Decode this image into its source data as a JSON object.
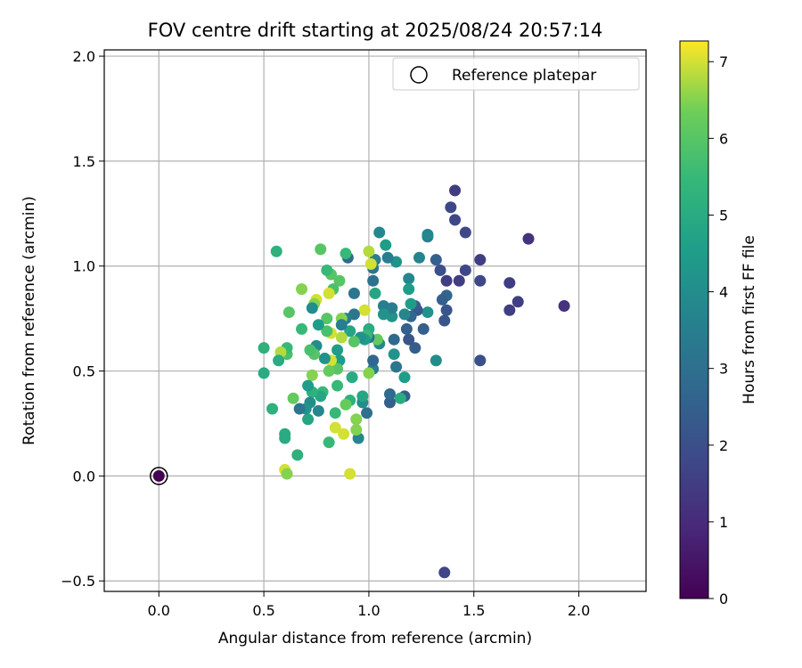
{
  "chart_data": {
    "type": "scatter",
    "title": "FOV centre drift starting at 2025/08/24 20:57:14",
    "xlabel": "Angular distance from reference (arcmin)",
    "ylabel": "Rotation from reference (arcmin)",
    "xlim": [
      -0.26,
      2.32
    ],
    "ylim": [
      -0.55,
      2.03
    ],
    "xticks": [
      0.0,
      0.5,
      1.0,
      1.5,
      2.0
    ],
    "xtick_labels": [
      "0.0",
      "0.5",
      "1.0",
      "1.5",
      "2.0"
    ],
    "yticks": [
      -0.5,
      0.0,
      0.5,
      1.0,
      1.5,
      2.0
    ],
    "ytick_labels": [
      "−0.5",
      "0.0",
      "0.5",
      "1.0",
      "1.5",
      "2.0"
    ],
    "grid": true,
    "legend": {
      "position": "top-right",
      "entries": [
        "Reference platepar"
      ]
    },
    "colorbar": {
      "label": "Hours from first FF file",
      "colormap": "viridis",
      "range": [
        0,
        7.27
      ],
      "ticks": [
        0,
        1,
        2,
        3,
        4,
        5,
        6,
        7
      ],
      "tick_labels": [
        "0",
        "1",
        "2",
        "3",
        "4",
        "5",
        "6",
        "7"
      ]
    },
    "reference_point": {
      "x": 0.0,
      "y": 0.0,
      "hours": 0.0
    },
    "points": [
      {
        "x": 1.41,
        "y": 1.36,
        "h": 1.5
      },
      {
        "x": 1.39,
        "y": 1.28,
        "h": 1.8
      },
      {
        "x": 1.41,
        "y": 1.22,
        "h": 1.8
      },
      {
        "x": 1.46,
        "y": 1.16,
        "h": 1.8
      },
      {
        "x": 1.76,
        "y": 1.13,
        "h": 1.2
      },
      {
        "x": 1.53,
        "y": 1.03,
        "h": 1.5
      },
      {
        "x": 1.46,
        "y": 0.98,
        "h": 1.8
      },
      {
        "x": 1.37,
        "y": 0.93,
        "h": 1.5
      },
      {
        "x": 1.43,
        "y": 0.93,
        "h": 1.5
      },
      {
        "x": 1.53,
        "y": 0.93,
        "h": 1.8
      },
      {
        "x": 1.67,
        "y": 0.92,
        "h": 1.5
      },
      {
        "x": 1.34,
        "y": 0.98,
        "h": 2.0
      },
      {
        "x": 1.71,
        "y": 0.83,
        "h": 1.5
      },
      {
        "x": 1.67,
        "y": 0.79,
        "h": 1.5
      },
      {
        "x": 1.93,
        "y": 0.81,
        "h": 1.2
      },
      {
        "x": 1.36,
        "y": 0.74,
        "h": 2.2
      },
      {
        "x": 1.37,
        "y": 0.79,
        "h": 2.2
      },
      {
        "x": 1.37,
        "y": 0.86,
        "h": 2.7
      },
      {
        "x": 1.35,
        "y": 0.84,
        "h": 2.5
      },
      {
        "x": 1.32,
        "y": 1.03,
        "h": 2.5
      },
      {
        "x": 1.28,
        "y": 1.14,
        "h": 3.5
      },
      {
        "x": 1.28,
        "y": 1.15,
        "h": 3.8
      },
      {
        "x": 1.24,
        "y": 1.04,
        "h": 3.7
      },
      {
        "x": 1.53,
        "y": 0.55,
        "h": 2.0
      },
      {
        "x": 1.36,
        "y": -0.46,
        "h": 1.7
      },
      {
        "x": 1.32,
        "y": 0.55,
        "h": 4.0
      },
      {
        "x": 1.28,
        "y": 0.78,
        "h": 4.2
      },
      {
        "x": 1.26,
        "y": 0.7,
        "h": 2.5
      },
      {
        "x": 1.23,
        "y": 0.79,
        "h": 2.2
      },
      {
        "x": 1.22,
        "y": 0.81,
        "h": 2.4
      },
      {
        "x": 1.2,
        "y": 0.76,
        "h": 2.7
      },
      {
        "x": 1.22,
        "y": 0.61,
        "h": 2.4
      },
      {
        "x": 1.2,
        "y": 0.82,
        "h": 4.5
      },
      {
        "x": 1.19,
        "y": 0.94,
        "h": 3.8
      },
      {
        "x": 1.19,
        "y": 0.89,
        "h": 4.5
      },
      {
        "x": 1.18,
        "y": 0.7,
        "h": 2.5
      },
      {
        "x": 1.19,
        "y": 0.65,
        "h": 2.2
      },
      {
        "x": 1.17,
        "y": 0.77,
        "h": 3.8
      },
      {
        "x": 1.17,
        "y": 0.47,
        "h": 4.5
      },
      {
        "x": 1.17,
        "y": 0.38,
        "h": 2.5
      },
      {
        "x": 1.15,
        "y": 0.37,
        "h": 5.0
      },
      {
        "x": 1.13,
        "y": 1.02,
        "h": 4.2
      },
      {
        "x": 1.13,
        "y": 0.52,
        "h": 3.2
      },
      {
        "x": 1.12,
        "y": 0.58,
        "h": 4.2
      },
      {
        "x": 1.12,
        "y": 0.65,
        "h": 2.8
      },
      {
        "x": 1.11,
        "y": 0.76,
        "h": 4.2
      },
      {
        "x": 1.11,
        "y": 0.8,
        "h": 3.5
      },
      {
        "x": 1.1,
        "y": 0.35,
        "h": 2.5
      },
      {
        "x": 1.1,
        "y": 0.39,
        "h": 2.8
      },
      {
        "x": 1.09,
        "y": 1.04,
        "h": 3.5
      },
      {
        "x": 1.08,
        "y": 1.1,
        "h": 4.5
      },
      {
        "x": 1.07,
        "y": 0.81,
        "h": 3.5
      },
      {
        "x": 1.07,
        "y": 0.77,
        "h": 4.2
      },
      {
        "x": 1.05,
        "y": 1.16,
        "h": 3.8
      },
      {
        "x": 1.05,
        "y": 0.63,
        "h": 3.8
      },
      {
        "x": 1.04,
        "y": 0.65,
        "h": 6.2
      },
      {
        "x": 1.03,
        "y": 1.03,
        "h": 3.5
      },
      {
        "x": 1.03,
        "y": 0.87,
        "h": 4.8
      },
      {
        "x": 1.02,
        "y": 0.93,
        "h": 3.0
      },
      {
        "x": 1.02,
        "y": 0.99,
        "h": 3.2
      },
      {
        "x": 1.02,
        "y": 0.51,
        "h": 3.5
      },
      {
        "x": 1.02,
        "y": 0.55,
        "h": 2.7
      },
      {
        "x": 1.01,
        "y": 1.01,
        "h": 7.0
      },
      {
        "x": 1.0,
        "y": 1.07,
        "h": 6.8
      },
      {
        "x": 1.0,
        "y": 0.7,
        "h": 5.0
      },
      {
        "x": 1.0,
        "y": 0.49,
        "h": 6.5
      },
      {
        "x": 1.0,
        "y": 0.66,
        "h": 3.0
      },
      {
        "x": 0.99,
        "y": 0.67,
        "h": 5.5
      },
      {
        "x": 0.99,
        "y": 0.3,
        "h": 3.0
      },
      {
        "x": 0.98,
        "y": 0.79,
        "h": 7.0
      },
      {
        "x": 0.98,
        "y": 0.65,
        "h": 4.5
      },
      {
        "x": 0.97,
        "y": 0.35,
        "h": 4.0
      },
      {
        "x": 0.97,
        "y": 0.38,
        "h": 4.8
      },
      {
        "x": 0.96,
        "y": 0.66,
        "h": 4.2
      },
      {
        "x": 0.95,
        "y": 0.18,
        "h": 3.8
      },
      {
        "x": 0.94,
        "y": 0.22,
        "h": 6.5
      },
      {
        "x": 0.94,
        "y": 0.27,
        "h": 6.5
      },
      {
        "x": 0.93,
        "y": 0.77,
        "h": 3.2
      },
      {
        "x": 0.93,
        "y": 0.87,
        "h": 3.2
      },
      {
        "x": 0.93,
        "y": 0.64,
        "h": 6.0
      },
      {
        "x": 0.92,
        "y": 0.47,
        "h": 5.0
      },
      {
        "x": 0.91,
        "y": 0.36,
        "h": 5.2
      },
      {
        "x": 0.91,
        "y": 0.69,
        "h": 4.8
      },
      {
        "x": 0.91,
        "y": 0.01,
        "h": 7.0
      },
      {
        "x": 0.9,
        "y": 1.04,
        "h": 2.8
      },
      {
        "x": 0.89,
        "y": 1.06,
        "h": 5.5
      },
      {
        "x": 0.89,
        "y": 0.34,
        "h": 6.2
      },
      {
        "x": 0.89,
        "y": 0.75,
        "h": 3.5
      },
      {
        "x": 0.88,
        "y": 0.2,
        "h": 7.0
      },
      {
        "x": 0.87,
        "y": 0.75,
        "h": 6.5
      },
      {
        "x": 0.87,
        "y": 0.72,
        "h": 3.5
      },
      {
        "x": 0.87,
        "y": 0.66,
        "h": 6.8
      },
      {
        "x": 0.86,
        "y": 0.93,
        "h": 6.0
      },
      {
        "x": 0.86,
        "y": 0.55,
        "h": 4.5
      },
      {
        "x": 0.85,
        "y": 0.6,
        "h": 4.5
      },
      {
        "x": 0.85,
        "y": 0.51,
        "h": 6.0
      },
      {
        "x": 0.85,
        "y": 0.43,
        "h": 5.5
      },
      {
        "x": 0.84,
        "y": 0.3,
        "h": 5.5
      },
      {
        "x": 0.84,
        "y": 0.23,
        "h": 7.0
      },
      {
        "x": 0.83,
        "y": 0.89,
        "h": 5.8
      },
      {
        "x": 0.82,
        "y": 0.68,
        "h": 7.0
      },
      {
        "x": 0.82,
        "y": 0.55,
        "h": 7.0
      },
      {
        "x": 0.82,
        "y": 0.96,
        "h": 6.0
      },
      {
        "x": 0.81,
        "y": 0.87,
        "h": 7.0
      },
      {
        "x": 0.81,
        "y": 0.5,
        "h": 6.2
      },
      {
        "x": 0.81,
        "y": 0.16,
        "h": 5.5
      },
      {
        "x": 0.8,
        "y": 0.98,
        "h": 5.5
      },
      {
        "x": 0.8,
        "y": 0.75,
        "h": 6.0
      },
      {
        "x": 0.8,
        "y": 0.69,
        "h": 5.8
      },
      {
        "x": 0.79,
        "y": 0.56,
        "h": 4.2
      },
      {
        "x": 0.78,
        "y": 0.4,
        "h": 5.5
      },
      {
        "x": 0.77,
        "y": 1.08,
        "h": 6.0
      },
      {
        "x": 0.77,
        "y": 0.38,
        "h": 4.8
      },
      {
        "x": 0.76,
        "y": 0.31,
        "h": 3.8
      },
      {
        "x": 0.76,
        "y": 0.72,
        "h": 4.5
      },
      {
        "x": 0.75,
        "y": 0.84,
        "h": 7.0
      },
      {
        "x": 0.75,
        "y": 0.62,
        "h": 4.0
      },
      {
        "x": 0.74,
        "y": 0.82,
        "h": 6.5
      },
      {
        "x": 0.74,
        "y": 0.58,
        "h": 6.0
      },
      {
        "x": 0.73,
        "y": 0.8,
        "h": 4.0
      },
      {
        "x": 0.73,
        "y": 0.48,
        "h": 6.5
      },
      {
        "x": 0.73,
        "y": 0.4,
        "h": 5.2
      },
      {
        "x": 0.72,
        "y": 0.6,
        "h": 5.8
      },
      {
        "x": 0.72,
        "y": 0.35,
        "h": 4.0
      },
      {
        "x": 0.71,
        "y": 0.43,
        "h": 4.5
      },
      {
        "x": 0.71,
        "y": 0.27,
        "h": 4.8
      },
      {
        "x": 0.7,
        "y": 0.32,
        "h": 4.2
      },
      {
        "x": 0.68,
        "y": 0.89,
        "h": 6.5
      },
      {
        "x": 0.68,
        "y": 0.7,
        "h": 5.5
      },
      {
        "x": 0.67,
        "y": 0.32,
        "h": 3.2
      },
      {
        "x": 0.66,
        "y": 0.1,
        "h": 5.2
      },
      {
        "x": 0.64,
        "y": 0.37,
        "h": 6.2
      },
      {
        "x": 0.62,
        "y": 0.78,
        "h": 6.0
      },
      {
        "x": 0.61,
        "y": 0.58,
        "h": 5.8
      },
      {
        "x": 0.61,
        "y": 0.61,
        "h": 5.5
      },
      {
        "x": 0.6,
        "y": 0.2,
        "h": 5.0
      },
      {
        "x": 0.6,
        "y": 0.18,
        "h": 5.0
      },
      {
        "x": 0.6,
        "y": 0.03,
        "h": 7.0
      },
      {
        "x": 0.61,
        "y": 0.01,
        "h": 6.5
      },
      {
        "x": 0.58,
        "y": 0.59,
        "h": 6.8
      },
      {
        "x": 0.57,
        "y": 0.55,
        "h": 5.0
      },
      {
        "x": 0.56,
        "y": 1.07,
        "h": 5.2
      },
      {
        "x": 0.54,
        "y": 0.32,
        "h": 5.2
      },
      {
        "x": 0.5,
        "y": 0.61,
        "h": 5.2
      },
      {
        "x": 0.5,
        "y": 0.49,
        "h": 5.0
      }
    ]
  }
}
